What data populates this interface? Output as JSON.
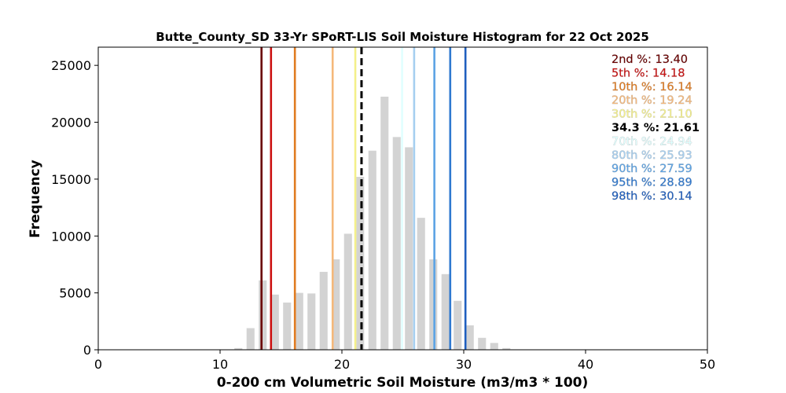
{
  "chart_data": {
    "type": "bar",
    "title": "Butte_County_SD 33-Yr SPoRT-LIS Soil Moisture Histogram for 22 Oct 2025",
    "xlabel": "0-200 cm Volumetric Soil Moisture (m3/m3 * 100)",
    "ylabel": "Frequency",
    "xlim": [
      0,
      50
    ],
    "ylim": [
      0,
      26600
    ],
    "xticks": [
      0,
      10,
      20,
      30,
      40,
      50
    ],
    "yticks": [
      0,
      5000,
      10000,
      15000,
      20000,
      25000
    ],
    "bar_color": "#d3d3d3",
    "bar_width": 0.65,
    "bins": {
      "x": [
        10,
        11,
        12,
        13,
        14,
        15,
        16,
        17,
        18,
        19,
        20,
        21,
        22,
        23,
        24,
        25,
        26,
        27,
        28,
        29,
        30,
        31,
        32,
        33
      ],
      "values": [
        20,
        150,
        1900,
        6100,
        4850,
        4150,
        5000,
        4950,
        6850,
        7950,
        10200,
        15200,
        17500,
        22250,
        18700,
        17800,
        11600,
        7950,
        6650,
        4300,
        2150,
        1050,
        600,
        150
      ]
    },
    "percentiles": [
      {
        "label": "2nd %: 13.40",
        "value": 13.4,
        "color": "#6b0000"
      },
      {
        "label": "5th %: 14.18",
        "value": 14.18,
        "color": "#cc1111"
      },
      {
        "label": "10th %: 16.14",
        "value": 16.14,
        "color": "#e07b20"
      },
      {
        "label": "20th %: 19.24",
        "value": 19.24,
        "color": "#f5b87a"
      },
      {
        "label": "30th %: 21.10",
        "value": 21.1,
        "color": "#f4f08a"
      },
      {
        "label": "70th %: 24.94",
        "value": 24.94,
        "color": "#e0ffff"
      },
      {
        "label": "80th %: 25.93",
        "value": 25.93,
        "color": "#a6cff0"
      },
      {
        "label": "90th %: 27.59",
        "value": 27.59,
        "color": "#5ca3e4"
      },
      {
        "label": "95th %: 28.89",
        "value": 28.89,
        "color": "#2f79d0"
      },
      {
        "label": "98th %: 30.14",
        "value": 30.14,
        "color": "#1f5fbf"
      }
    ],
    "current": {
      "label": "34.3 %: 21.61",
      "value": 21.61,
      "color": "#000000"
    },
    "legend_order": [
      "2nd %: 13.40",
      "5th %: 14.18",
      "10th %: 16.14",
      "20th %: 19.24",
      "30th %: 21.10",
      "34.3 %: 21.61",
      "70th %: 24.94",
      "80th %: 25.93",
      "90th %: 27.59",
      "95th %: 28.89",
      "98th %: 30.14"
    ],
    "legend_placement": "top-right"
  }
}
